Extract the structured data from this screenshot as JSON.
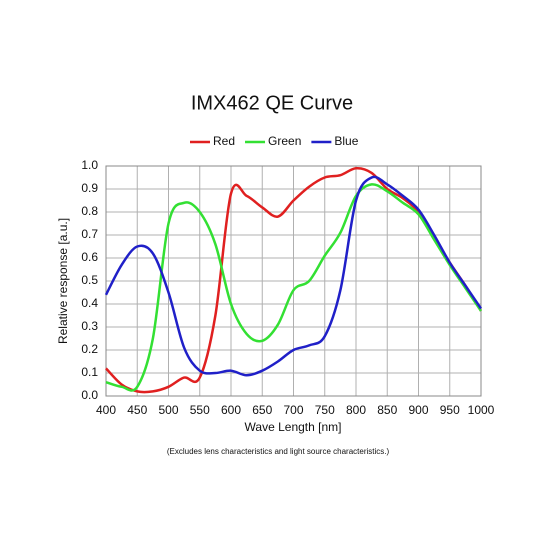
{
  "chart_data": {
    "type": "line",
    "title": "IMX462  QE Curve",
    "x_label": "Wave Length [nm]",
    "y_label": "Relative response [a.u.]",
    "note": "(Excludes lens characteristics and light source characteristics.)",
    "x": [
      400,
      425,
      450,
      475,
      500,
      525,
      550,
      575,
      600,
      625,
      650,
      675,
      700,
      725,
      750,
      775,
      800,
      825,
      850,
      875,
      900,
      925,
      950,
      975,
      1000
    ],
    "series": [
      {
        "name": "Red",
        "color": "#e02020",
        "values": [
          0.12,
          0.05,
          0.02,
          0.02,
          0.04,
          0.08,
          0.08,
          0.35,
          0.88,
          0.87,
          0.82,
          0.78,
          0.85,
          0.91,
          0.95,
          0.96,
          0.99,
          0.97,
          0.9,
          0.86,
          0.8,
          0.69,
          0.58,
          0.48,
          0.37
        ]
      },
      {
        "name": "Green",
        "color": "#33e033",
        "values": [
          0.06,
          0.04,
          0.04,
          0.25,
          0.75,
          0.84,
          0.8,
          0.66,
          0.4,
          0.27,
          0.24,
          0.31,
          0.46,
          0.5,
          0.61,
          0.71,
          0.87,
          0.92,
          0.89,
          0.84,
          0.79,
          0.68,
          0.57,
          0.47,
          0.37
        ]
      },
      {
        "name": "Blue",
        "color": "#2020c8",
        "values": [
          0.44,
          0.57,
          0.65,
          0.62,
          0.45,
          0.21,
          0.11,
          0.1,
          0.11,
          0.09,
          0.11,
          0.15,
          0.2,
          0.22,
          0.26,
          0.46,
          0.85,
          0.95,
          0.92,
          0.87,
          0.81,
          0.7,
          0.58,
          0.48,
          0.38
        ]
      }
    ],
    "xlim": [
      400,
      1000
    ],
    "xticks": [
      400,
      450,
      500,
      550,
      600,
      650,
      700,
      750,
      800,
      850,
      900,
      950,
      1000
    ],
    "ylim": [
      0,
      1
    ],
    "yticks": [
      {
        "value": 0,
        "label": "0.0"
      },
      0.1,
      0.2,
      0.3,
      0.4,
      0.5,
      0.6,
      0.7,
      0.8,
      0.9,
      {
        "value": 1,
        "label": "1.0"
      }
    ],
    "grid": true,
    "legend": "top"
  }
}
